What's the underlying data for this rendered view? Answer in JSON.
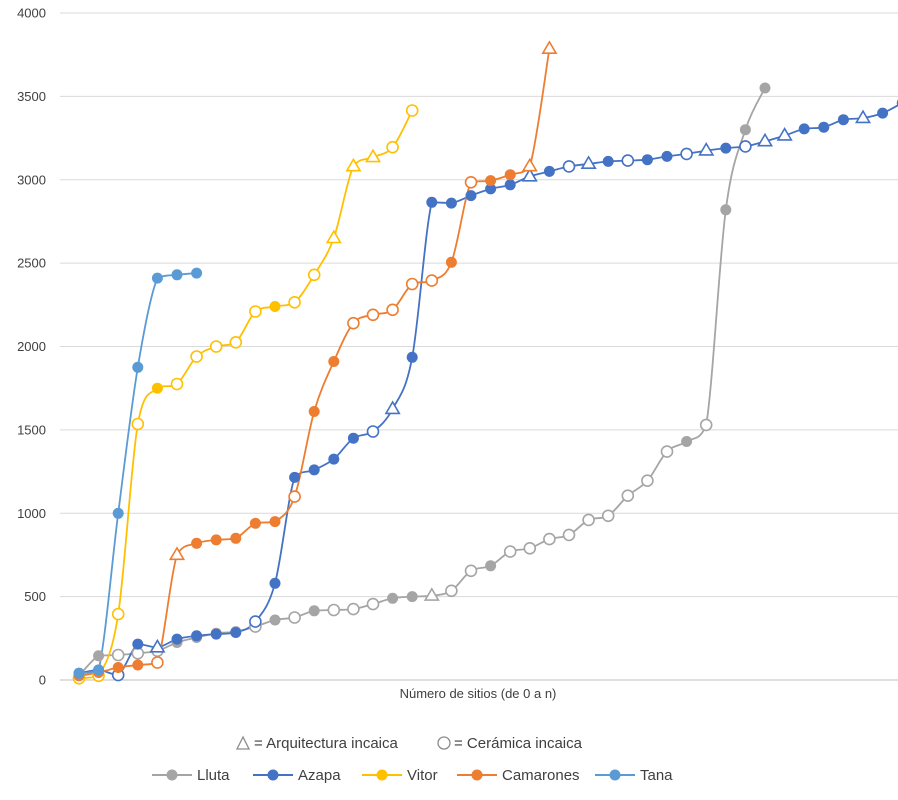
{
  "chart_data": {
    "type": "line",
    "xlabel": "Número de sitios (de 0 a n)",
    "ylim": [
      0,
      4000
    ],
    "yticks": [
      "0",
      "500",
      "1000",
      "1500",
      "2000",
      "2500",
      "3000",
      "3500",
      "4000"
    ],
    "grid": true,
    "marker_legend": [
      {
        "symbol": "triangle-open",
        "label": "= Arquitectura incaica"
      },
      {
        "symbol": "circle-open",
        "label": "= Cerámica incaica"
      }
    ],
    "series": [
      {
        "name": "Lluta",
        "color": "#a5a5a5",
        "points": [
          [
            0,
            25,
            "c"
          ],
          [
            1,
            145,
            "c"
          ],
          [
            2,
            150,
            "o"
          ],
          [
            3,
            160,
            "o"
          ],
          [
            4,
            175,
            "o"
          ],
          [
            5,
            225,
            "c"
          ],
          [
            6,
            255,
            "c"
          ],
          [
            7,
            280,
            "c"
          ],
          [
            8,
            290,
            "c"
          ],
          [
            9,
            320,
            "o"
          ],
          [
            10,
            360,
            "c"
          ],
          [
            11,
            375,
            "o"
          ],
          [
            12,
            415,
            "c"
          ],
          [
            13,
            420,
            "o"
          ],
          [
            14,
            425,
            "o"
          ],
          [
            15,
            455,
            "o"
          ],
          [
            16,
            490,
            "c"
          ],
          [
            17,
            500,
            "c"
          ],
          [
            18,
            505,
            "t"
          ],
          [
            19,
            535,
            "o"
          ],
          [
            20,
            655,
            "o"
          ],
          [
            21,
            685,
            "c"
          ],
          [
            22,
            770,
            "o"
          ],
          [
            23,
            790,
            "o"
          ],
          [
            24,
            845,
            "o"
          ],
          [
            25,
            870,
            "o"
          ],
          [
            26,
            960,
            "o"
          ],
          [
            27,
            985,
            "o"
          ],
          [
            28,
            1105,
            "o"
          ],
          [
            29,
            1195,
            "o"
          ],
          [
            30,
            1370,
            "o"
          ],
          [
            31,
            1430,
            "c"
          ],
          [
            32,
            1530,
            "o"
          ],
          [
            33,
            2820,
            "c"
          ],
          [
            34,
            3300,
            "c"
          ],
          [
            35,
            3550,
            "c"
          ]
        ]
      },
      {
        "name": "Azapa",
        "color": "#4472c4",
        "points": [
          [
            0,
            40,
            "c"
          ],
          [
            1,
            60,
            "c"
          ],
          [
            2,
            30,
            "o"
          ],
          [
            3,
            215,
            "c"
          ],
          [
            4,
            195,
            "t"
          ],
          [
            5,
            245,
            "c"
          ],
          [
            6,
            265,
            "c"
          ],
          [
            7,
            275,
            "c"
          ],
          [
            8,
            285,
            "c"
          ],
          [
            9,
            350,
            "o"
          ],
          [
            10,
            580,
            "c"
          ],
          [
            11,
            1215,
            "c"
          ],
          [
            12,
            1260,
            "c"
          ],
          [
            13,
            1325,
            "c"
          ],
          [
            14,
            1450,
            "c"
          ],
          [
            15,
            1490,
            "o"
          ],
          [
            16,
            1625,
            "t"
          ],
          [
            17,
            1935,
            "c"
          ],
          [
            18,
            2865,
            "c"
          ],
          [
            19,
            2860,
            "c"
          ],
          [
            20,
            2905,
            "c"
          ],
          [
            21,
            2945,
            "c"
          ],
          [
            22,
            2970,
            "c"
          ],
          [
            23,
            3020,
            "t"
          ],
          [
            24,
            3050,
            "c"
          ],
          [
            25,
            3080,
            "o"
          ],
          [
            26,
            3095,
            "t"
          ],
          [
            27,
            3110,
            "c"
          ],
          [
            28,
            3115,
            "o"
          ],
          [
            29,
            3120,
            "c"
          ],
          [
            30,
            3140,
            "c"
          ],
          [
            31,
            3155,
            "o"
          ],
          [
            32,
            3175,
            "t"
          ],
          [
            33,
            3190,
            "c"
          ],
          [
            34,
            3200,
            "o"
          ],
          [
            35,
            3230,
            "t"
          ],
          [
            36,
            3265,
            "t"
          ],
          [
            37,
            3305,
            "c"
          ],
          [
            38,
            3315,
            "c"
          ],
          [
            39,
            3360,
            "c"
          ],
          [
            40,
            3370,
            "t"
          ],
          [
            41,
            3400,
            "c"
          ],
          [
            42,
            3460,
            "c"
          ]
        ]
      },
      {
        "name": "Vitor",
        "color": "#ffc000",
        "points": [
          [
            0,
            10,
            "o"
          ],
          [
            1,
            25,
            "o"
          ],
          [
            2,
            395,
            "o"
          ],
          [
            3,
            1535,
            "o"
          ],
          [
            4,
            1750,
            "c"
          ],
          [
            5,
            1775,
            "o"
          ],
          [
            6,
            1940,
            "o"
          ],
          [
            7,
            2000,
            "o"
          ],
          [
            8,
            2025,
            "o"
          ],
          [
            9,
            2210,
            "o"
          ],
          [
            10,
            2240,
            "c"
          ],
          [
            11,
            2265,
            "o"
          ],
          [
            12,
            2430,
            "o"
          ],
          [
            13,
            2650,
            "t"
          ],
          [
            14,
            3080,
            "t"
          ],
          [
            15,
            3135,
            "t"
          ],
          [
            16,
            3195,
            "o"
          ],
          [
            17,
            3415,
            "o"
          ]
        ]
      },
      {
        "name": "Camarones",
        "color": "#ed7d31",
        "points": [
          [
            0,
            25,
            "c"
          ],
          [
            1,
            45,
            "c"
          ],
          [
            2,
            75,
            "c"
          ],
          [
            3,
            90,
            "c"
          ],
          [
            4,
            105,
            "o"
          ],
          [
            5,
            750,
            "t"
          ],
          [
            6,
            820,
            "c"
          ],
          [
            7,
            840,
            "c"
          ],
          [
            8,
            850,
            "c"
          ],
          [
            9,
            940,
            "c"
          ],
          [
            10,
            950,
            "c"
          ],
          [
            11,
            1100,
            "o"
          ],
          [
            12,
            1610,
            "c"
          ],
          [
            13,
            1910,
            "c"
          ],
          [
            14,
            2140,
            "o"
          ],
          [
            15,
            2190,
            "o"
          ],
          [
            16,
            2220,
            "o"
          ],
          [
            17,
            2375,
            "o"
          ],
          [
            18,
            2395,
            "o"
          ],
          [
            19,
            2505,
            "c"
          ],
          [
            20,
            2985,
            "o"
          ],
          [
            21,
            2995,
            "c"
          ],
          [
            22,
            3030,
            "c"
          ],
          [
            23,
            3080,
            "t"
          ],
          [
            24,
            3785,
            "t"
          ]
        ]
      },
      {
        "name": "Tana",
        "color": "#5b9bd5",
        "points": [
          [
            0,
            40,
            "c"
          ],
          [
            1,
            60,
            "c"
          ],
          [
            2,
            1000,
            "c"
          ],
          [
            3,
            1875,
            "c"
          ],
          [
            4,
            2410,
            "c"
          ],
          [
            5,
            2430,
            "c"
          ],
          [
            6,
            2440,
            "c"
          ]
        ]
      }
    ]
  }
}
